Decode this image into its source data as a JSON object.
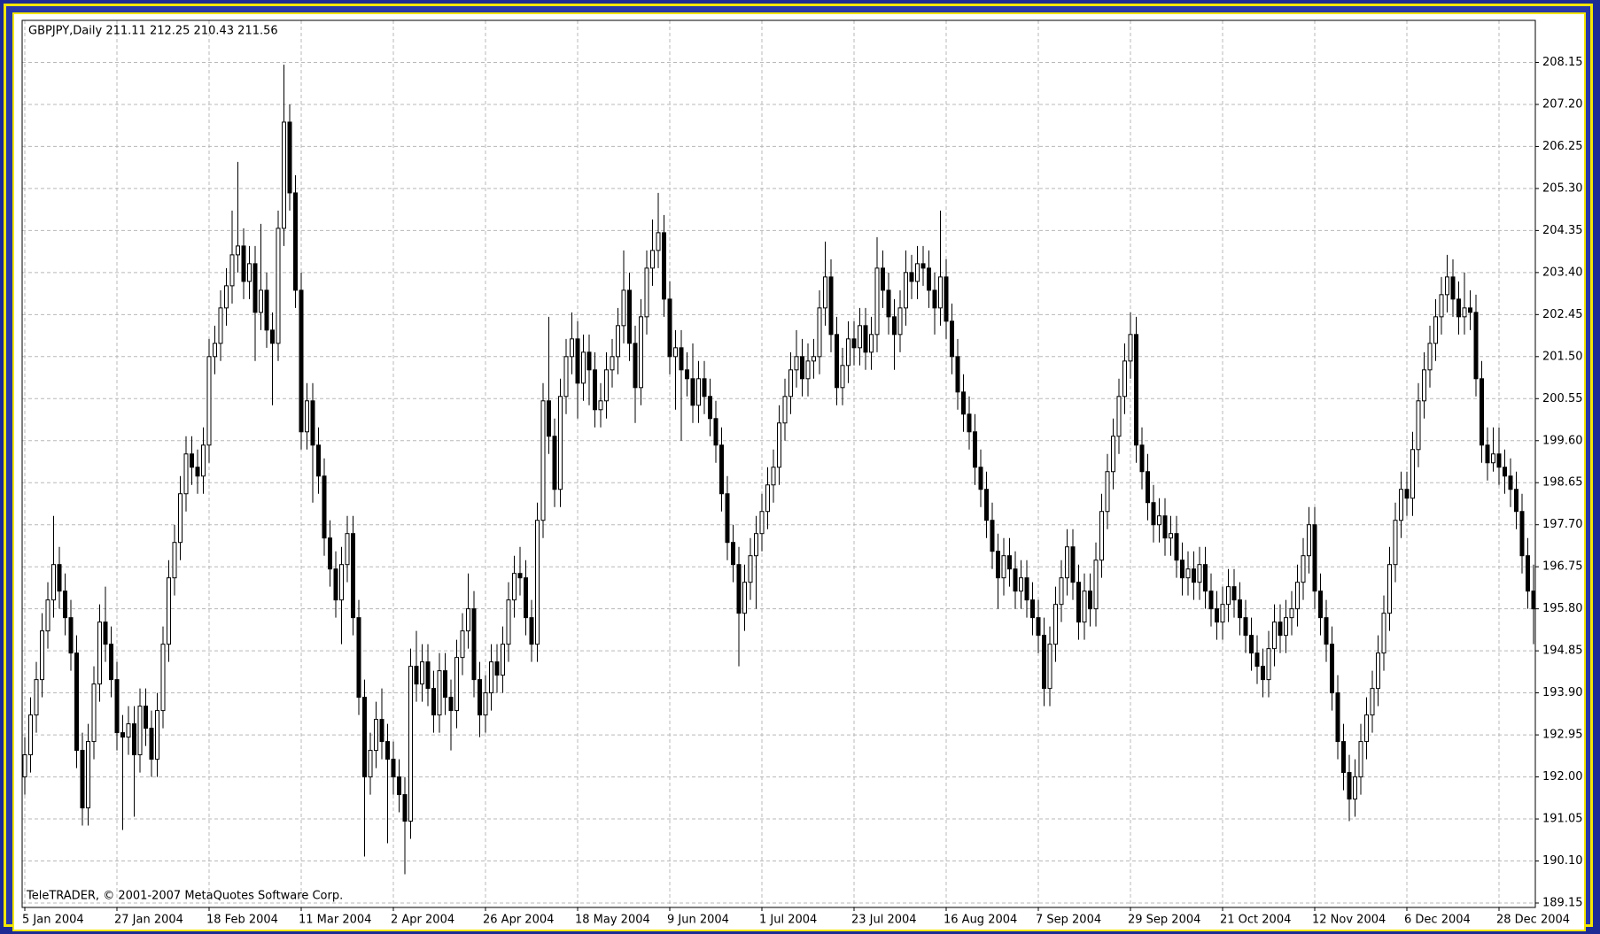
{
  "chart_data": {
    "type": "candlestick",
    "title": "GBPJPY,Daily  211.11 212.25 210.43 211.56",
    "footer": "TeleTRADER, © 2001-2007 MetaQuotes Software Corp.",
    "categories": [
      "5 Jan 2004",
      null,
      null,
      null,
      null,
      null,
      null,
      null,
      null,
      null,
      null,
      null,
      null,
      null,
      null,
      null,
      "27 Jan 2004",
      null,
      null,
      null,
      null,
      null,
      null,
      null,
      null,
      null,
      null,
      null,
      null,
      null,
      null,
      null,
      "18 Feb 2004",
      null,
      null,
      null,
      null,
      null,
      null,
      null,
      null,
      null,
      null,
      null,
      null,
      null,
      null,
      null,
      "11 Mar 2004",
      null,
      null,
      null,
      null,
      null,
      null,
      null,
      null,
      null,
      null,
      null,
      null,
      null,
      null,
      null,
      "2 Apr 2004",
      null,
      null,
      null,
      null,
      null,
      null,
      null,
      null,
      null,
      null,
      null,
      null,
      null,
      null,
      null,
      "26 Apr 2004",
      null,
      null,
      null,
      null,
      null,
      null,
      null,
      null,
      null,
      null,
      null,
      null,
      null,
      null,
      null,
      "18 May 2004",
      null,
      null,
      null,
      null,
      null,
      null,
      null,
      null,
      null,
      null,
      null,
      null,
      null,
      null,
      null,
      "9 Jun 2004",
      null,
      null,
      null,
      null,
      null,
      null,
      null,
      null,
      null,
      null,
      null,
      null,
      null,
      null,
      null,
      "1 Jul 2004",
      null,
      null,
      null,
      null,
      null,
      null,
      null,
      null,
      null,
      null,
      null,
      null,
      null,
      null,
      null,
      "23 Jul 2004",
      null,
      null,
      null,
      null,
      null,
      null,
      null,
      null,
      null,
      null,
      null,
      null,
      null,
      null,
      null,
      "16 Aug 2004",
      null,
      null,
      null,
      null,
      null,
      null,
      null,
      null,
      null,
      null,
      null,
      null,
      null,
      null,
      null,
      "7 Sep 2004",
      null,
      null,
      null,
      null,
      null,
      null,
      null,
      null,
      null,
      null,
      null,
      null,
      null,
      null,
      null,
      "29 Sep 2004",
      null,
      null,
      null,
      null,
      null,
      null,
      null,
      null,
      null,
      null,
      null,
      null,
      null,
      null,
      null,
      "21 Oct 2004",
      null,
      null,
      null,
      null,
      null,
      null,
      null,
      null,
      null,
      null,
      null,
      null,
      null,
      null,
      null,
      "12 Nov 2004",
      null,
      null,
      null,
      null,
      null,
      null,
      null,
      null,
      null,
      null,
      null,
      null,
      null,
      null,
      null,
      "6 Dec 2004",
      null,
      null,
      null,
      null,
      null,
      null,
      null,
      null,
      null,
      null,
      null,
      null,
      null,
      null,
      null,
      "28 Dec 2004",
      null,
      null,
      null,
      null,
      null,
      null
    ],
    "open": [
      192.0,
      192.5,
      193.4,
      194.2,
      195.3,
      196.0,
      196.8,
      196.2,
      195.6,
      194.8,
      192.6,
      191.3,
      192.8,
      194.1,
      195.5,
      195.0,
      194.2,
      193.0,
      192.9,
      193.2,
      192.5,
      193.6,
      193.1,
      192.4,
      193.5,
      195.0,
      196.5,
      197.3,
      198.4,
      199.3,
      199.0,
      198.8,
      199.5,
      201.5,
      201.8,
      202.6,
      203.1,
      203.8,
      204.0,
      203.2,
      203.6,
      202.5,
      203.0,
      202.1,
      201.8,
      204.4,
      206.8,
      205.2,
      203.0,
      199.8,
      200.5,
      199.5,
      198.8,
      197.4,
      196.7,
      196.0,
      196.8,
      197.5,
      195.6,
      193.8,
      192.0,
      192.6,
      193.3,
      192.8,
      192.4,
      192.0,
      191.6,
      191.0,
      194.5,
      194.1,
      194.6,
      194.0,
      193.4,
      194.4,
      193.8,
      193.5,
      194.7,
      195.3,
      195.8,
      194.2,
      193.4,
      193.9,
      194.6,
      194.3,
      195.0,
      196.0,
      196.6,
      196.5,
      195.6,
      195.0,
      197.8,
      200.5,
      199.7,
      198.5,
      200.6,
      201.5,
      201.9,
      200.9,
      201.6,
      201.2,
      200.3,
      200.5,
      201.2,
      201.5,
      202.2,
      203.0,
      201.8,
      200.8,
      202.4,
      203.5,
      203.9,
      204.3,
      202.8,
      201.5,
      201.7,
      201.2,
      201.0,
      200.4,
      201.0,
      200.6,
      200.1,
      199.5,
      198.4,
      197.3,
      196.8,
      195.7,
      196.4,
      197.0,
      197.5,
      198.0,
      198.6,
      199.0,
      200.0,
      200.6,
      201.2,
      201.5,
      201.0,
      201.4,
      201.5,
      202.6,
      203.3,
      202.0,
      200.8,
      201.3,
      201.9,
      201.7,
      202.2,
      201.6,
      202.0,
      203.5,
      203.0,
      202.4,
      202.0,
      202.6,
      203.4,
      203.2,
      203.6,
      203.5,
      203.0,
      202.6,
      203.3,
      202.3,
      201.5,
      200.7,
      200.2,
      199.8,
      199.0,
      198.5,
      197.8,
      197.1,
      196.5,
      197.0,
      196.7,
      196.2,
      196.5,
      196.0,
      195.6,
      195.2,
      194.0,
      195.0,
      195.9,
      196.5,
      197.2,
      196.4,
      195.5,
      196.2,
      195.8,
      196.9,
      198.0,
      198.9,
      199.7,
      200.6,
      201.4,
      202.0,
      199.5,
      198.9,
      198.2,
      197.7,
      197.9,
      197.4,
      197.5,
      196.9,
      196.5,
      196.7,
      196.4,
      196.8,
      196.2,
      195.8,
      195.5,
      195.9,
      196.3,
      196.0,
      195.6,
      195.2,
      194.8,
      194.5,
      194.2,
      194.9,
      195.5,
      195.2,
      195.6,
      195.8,
      196.4,
      197.0,
      197.7,
      196.2,
      195.6,
      195.0,
      193.9,
      192.8,
      192.1,
      191.5,
      192.0,
      192.8,
      193.4,
      194.0,
      194.8,
      195.7,
      196.8,
      197.8,
      198.5,
      198.3,
      199.4,
      200.5,
      201.2,
      201.8,
      202.4,
      202.9,
      203.3,
      202.8,
      202.4,
      202.6,
      202.5,
      201.0,
      199.5,
      199.1,
      199.3,
      199.0,
      198.8,
      198.5,
      198.0,
      197.0,
      196.2
    ],
    "high": [
      192.9,
      193.8,
      194.6,
      195.7,
      196.4,
      197.9,
      197.2,
      196.6,
      196.0,
      195.2,
      193.0,
      193.2,
      194.5,
      195.9,
      196.3,
      195.4,
      194.6,
      193.4,
      193.6,
      193.6,
      194.0,
      194.0,
      193.5,
      193.9,
      195.4,
      196.9,
      197.7,
      198.8,
      199.7,
      199.7,
      199.4,
      199.9,
      201.9,
      202.2,
      203.0,
      203.5,
      204.8,
      205.9,
      204.4,
      204.0,
      204.0,
      204.5,
      203.4,
      202.5,
      204.8,
      208.1,
      207.2,
      205.6,
      203.4,
      200.9,
      200.9,
      199.9,
      199.2,
      197.8,
      197.1,
      197.2,
      197.9,
      197.9,
      196.0,
      194.2,
      193.0,
      193.7,
      194.0,
      193.2,
      192.8,
      192.4,
      192.0,
      194.9,
      195.3,
      195.0,
      195.0,
      194.4,
      194.8,
      194.8,
      194.2,
      195.1,
      195.7,
      196.6,
      196.2,
      194.6,
      194.3,
      195.0,
      195.0,
      195.4,
      196.4,
      197.0,
      197.2,
      196.9,
      196.0,
      198.2,
      200.9,
      202.4,
      200.1,
      201.0,
      201.9,
      202.5,
      202.3,
      202.0,
      202.0,
      201.6,
      200.9,
      201.6,
      201.9,
      202.6,
      203.9,
      203.4,
      202.2,
      202.8,
      203.9,
      204.6,
      205.2,
      204.7,
      203.2,
      202.1,
      202.1,
      201.6,
      201.8,
      201.4,
      201.4,
      201.0,
      200.5,
      199.9,
      198.8,
      197.7,
      197.2,
      196.8,
      197.4,
      197.9,
      198.4,
      199.0,
      199.4,
      200.4,
      201.0,
      201.6,
      202.1,
      201.9,
      201.8,
      201.9,
      203.0,
      204.1,
      203.7,
      202.4,
      201.7,
      202.3,
      202.3,
      202.6,
      202.6,
      202.4,
      204.2,
      203.9,
      203.4,
      202.8,
      203.0,
      203.9,
      203.8,
      204.0,
      204.0,
      203.9,
      203.4,
      204.8,
      203.7,
      202.7,
      201.9,
      201.1,
      200.6,
      200.2,
      199.4,
      198.9,
      198.2,
      197.5,
      197.4,
      197.4,
      197.1,
      196.9,
      196.9,
      196.4,
      196.0,
      195.6,
      195.4,
      196.3,
      196.9,
      197.6,
      197.6,
      196.8,
      196.6,
      196.6,
      197.3,
      198.4,
      199.3,
      200.1,
      201.0,
      201.8,
      202.5,
      202.4,
      199.9,
      199.3,
      198.6,
      198.3,
      198.3,
      197.9,
      197.9,
      197.3,
      197.1,
      197.1,
      197.2,
      197.2,
      196.6,
      196.2,
      196.3,
      196.7,
      196.7,
      196.4,
      196.0,
      195.6,
      195.2,
      194.9,
      195.3,
      195.9,
      195.9,
      196.0,
      196.2,
      196.8,
      197.4,
      198.1,
      198.1,
      196.6,
      196.0,
      195.4,
      194.3,
      193.2,
      192.5,
      192.4,
      193.2,
      193.8,
      194.4,
      195.2,
      196.1,
      197.2,
      198.2,
      198.9,
      198.9,
      199.8,
      200.9,
      201.6,
      202.2,
      202.8,
      203.3,
      203.8,
      203.7,
      203.2,
      203.4,
      203.0,
      202.9,
      201.4,
      199.9,
      199.9,
      199.9,
      199.4,
      199.2,
      198.9,
      198.4,
      197.4,
      196.8
    ],
    "low": [
      191.6,
      192.1,
      193.0,
      193.8,
      194.9,
      195.6,
      195.8,
      195.2,
      194.4,
      192.2,
      190.9,
      190.9,
      192.4,
      193.7,
      194.6,
      193.8,
      192.6,
      190.8,
      192.5,
      191.1,
      192.1,
      192.7,
      192.0,
      192.0,
      193.1,
      194.6,
      196.1,
      196.9,
      198.0,
      198.6,
      198.4,
      198.4,
      199.1,
      201.1,
      201.4,
      202.2,
      202.7,
      203.4,
      202.8,
      202.8,
      201.4,
      202.1,
      201.7,
      200.4,
      201.4,
      204.0,
      204.8,
      202.6,
      199.4,
      199.4,
      198.2,
      198.4,
      197.0,
      196.3,
      195.6,
      195.0,
      196.4,
      195.2,
      193.4,
      190.2,
      191.6,
      192.2,
      192.4,
      190.5,
      191.6,
      191.2,
      189.8,
      190.6,
      193.7,
      193.7,
      193.6,
      193.0,
      193.0,
      193.4,
      192.6,
      193.1,
      194.3,
      194.9,
      193.8,
      192.9,
      193.0,
      193.5,
      193.9,
      193.9,
      194.6,
      195.6,
      196.1,
      195.2,
      194.6,
      194.6,
      197.4,
      199.3,
      198.1,
      198.1,
      200.2,
      201.1,
      200.1,
      200.5,
      200.4,
      199.9,
      199.9,
      200.1,
      200.8,
      201.1,
      201.8,
      201.4,
      200.0,
      200.4,
      202.0,
      203.1,
      203.5,
      202.4,
      201.1,
      200.3,
      199.6,
      200.6,
      200.0,
      200.0,
      200.2,
      199.7,
      199.1,
      198.0,
      196.9,
      196.4,
      194.5,
      195.3,
      196.0,
      195.8,
      197.1,
      197.6,
      198.2,
      198.6,
      199.6,
      200.2,
      200.8,
      200.6,
      200.6,
      201.0,
      201.1,
      202.2,
      201.6,
      200.4,
      200.4,
      200.9,
      201.3,
      201.3,
      201.2,
      201.2,
      201.6,
      202.6,
      202.0,
      201.2,
      201.6,
      202.2,
      202.8,
      202.8,
      203.1,
      202.6,
      202.0,
      202.2,
      201.9,
      201.1,
      200.3,
      199.8,
      199.4,
      198.6,
      198.1,
      197.4,
      196.7,
      195.8,
      196.1,
      196.3,
      195.8,
      195.8,
      195.6,
      195.2,
      194.8,
      193.6,
      193.6,
      194.6,
      195.5,
      196.1,
      196.0,
      195.1,
      195.1,
      195.4,
      195.4,
      196.5,
      197.6,
      198.5,
      199.3,
      200.2,
      201.0,
      199.1,
      198.5,
      197.8,
      197.3,
      197.3,
      197.0,
      197.0,
      196.5,
      196.1,
      196.1,
      196.0,
      196.0,
      195.8,
      195.4,
      195.1,
      195.1,
      195.5,
      195.6,
      195.2,
      194.8,
      194.4,
      194.1,
      193.8,
      193.8,
      194.5,
      194.8,
      194.8,
      195.2,
      195.4,
      196.0,
      196.6,
      195.8,
      195.2,
      194.6,
      193.5,
      192.4,
      191.7,
      191.0,
      191.1,
      191.6,
      192.4,
      193.0,
      193.6,
      194.4,
      195.3,
      196.4,
      197.4,
      197.9,
      197.9,
      199.0,
      200.1,
      200.8,
      201.4,
      202.0,
      202.5,
      202.4,
      202.0,
      202.0,
      202.1,
      200.6,
      199.1,
      198.7,
      198.9,
      198.6,
      198.4,
      198.1,
      197.6,
      196.6,
      195.8,
      195.0
    ],
    "close": [
      192.5,
      193.4,
      194.2,
      195.3,
      196.0,
      196.8,
      196.2,
      195.6,
      194.8,
      192.6,
      191.3,
      192.8,
      194.1,
      195.5,
      195.0,
      194.2,
      193.0,
      192.9,
      193.2,
      192.5,
      193.6,
      193.1,
      192.4,
      193.5,
      195.0,
      196.5,
      197.3,
      198.4,
      199.3,
      199.0,
      198.8,
      199.5,
      201.5,
      201.8,
      202.6,
      203.1,
      203.8,
      204.0,
      203.2,
      203.6,
      202.5,
      203.0,
      202.1,
      201.8,
      204.4,
      206.8,
      205.2,
      203.0,
      199.8,
      200.5,
      199.5,
      198.8,
      197.4,
      196.7,
      196.0,
      196.8,
      197.5,
      195.6,
      193.8,
      192.0,
      192.6,
      193.3,
      192.8,
      192.4,
      192.0,
      191.6,
      191.0,
      194.5,
      194.1,
      194.6,
      194.0,
      193.4,
      194.4,
      193.8,
      193.5,
      194.7,
      195.3,
      195.8,
      194.2,
      193.4,
      193.9,
      194.6,
      194.3,
      195.0,
      196.0,
      196.6,
      196.5,
      195.6,
      195.0,
      197.8,
      200.5,
      199.7,
      198.5,
      200.6,
      201.5,
      201.9,
      200.9,
      201.6,
      201.2,
      200.3,
      200.5,
      201.2,
      201.5,
      202.2,
      203.0,
      201.8,
      200.8,
      202.4,
      203.5,
      203.9,
      204.3,
      202.8,
      201.5,
      201.7,
      201.2,
      201.0,
      200.4,
      201.0,
      200.6,
      200.1,
      199.5,
      198.4,
      197.3,
      196.8,
      195.7,
      196.4,
      197.0,
      197.5,
      198.0,
      198.6,
      199.0,
      200.0,
      200.6,
      201.2,
      201.5,
      201.0,
      201.4,
      201.5,
      202.6,
      203.3,
      202.0,
      200.8,
      201.3,
      201.9,
      201.7,
      202.2,
      201.6,
      202.0,
      203.5,
      203.0,
      202.4,
      202.0,
      202.6,
      203.4,
      203.2,
      203.6,
      203.5,
      203.0,
      202.6,
      203.3,
      202.3,
      201.5,
      200.7,
      200.2,
      199.8,
      199.0,
      198.5,
      197.8,
      197.1,
      196.5,
      197.0,
      196.7,
      196.2,
      196.5,
      196.0,
      195.6,
      195.2,
      194.0,
      195.0,
      195.9,
      196.5,
      197.2,
      196.4,
      195.5,
      196.2,
      195.8,
      196.9,
      198.0,
      198.9,
      199.7,
      200.6,
      201.4,
      202.0,
      199.5,
      198.9,
      198.2,
      197.7,
      197.9,
      197.4,
      197.5,
      196.9,
      196.5,
      196.7,
      196.4,
      196.8,
      196.2,
      195.8,
      195.5,
      195.9,
      196.3,
      196.0,
      195.6,
      195.2,
      194.8,
      194.5,
      194.2,
      194.9,
      195.5,
      195.2,
      195.6,
      195.8,
      196.4,
      197.0,
      197.7,
      196.2,
      195.6,
      195.0,
      193.9,
      192.8,
      192.1,
      191.5,
      192.0,
      192.8,
      193.4,
      194.0,
      194.8,
      195.7,
      196.8,
      197.8,
      198.5,
      198.3,
      199.4,
      200.5,
      201.2,
      201.8,
      202.4,
      202.9,
      203.3,
      202.8,
      202.4,
      202.6,
      202.5,
      201.0,
      199.5,
      199.1,
      199.3,
      199.0,
      198.8,
      198.5,
      198.0,
      197.0,
      196.2,
      195.8
    ],
    "up_color": "#ffffff",
    "down_color": "#000000",
    "outline_color": "#000000",
    "ylim": [
      189.05,
      209.1
    ],
    "yticks": [
      189.15,
      {
        "value": 190.1,
        "label": "190.10"
      },
      191.05,
      {
        "value": 192,
        "label": "192.00"
      },
      192.95,
      {
        "value": 193.9,
        "label": "193.90"
      },
      194.85,
      {
        "value": 195.8,
        "label": "195.80"
      },
      196.75,
      {
        "value": 197.7,
        "label": "197.70"
      },
      198.65,
      {
        "value": 199.6,
        "label": "199.60"
      },
      200.55,
      {
        "value": 201.5,
        "label": "201.50"
      },
      202.45,
      {
        "value": 203.4,
        "label": "203.40"
      },
      204.35,
      {
        "value": 205.3,
        "label": "205.30"
      },
      206.25,
      {
        "value": 207.2,
        "label": "207.20"
      },
      208.15
    ],
    "grid": true
  }
}
